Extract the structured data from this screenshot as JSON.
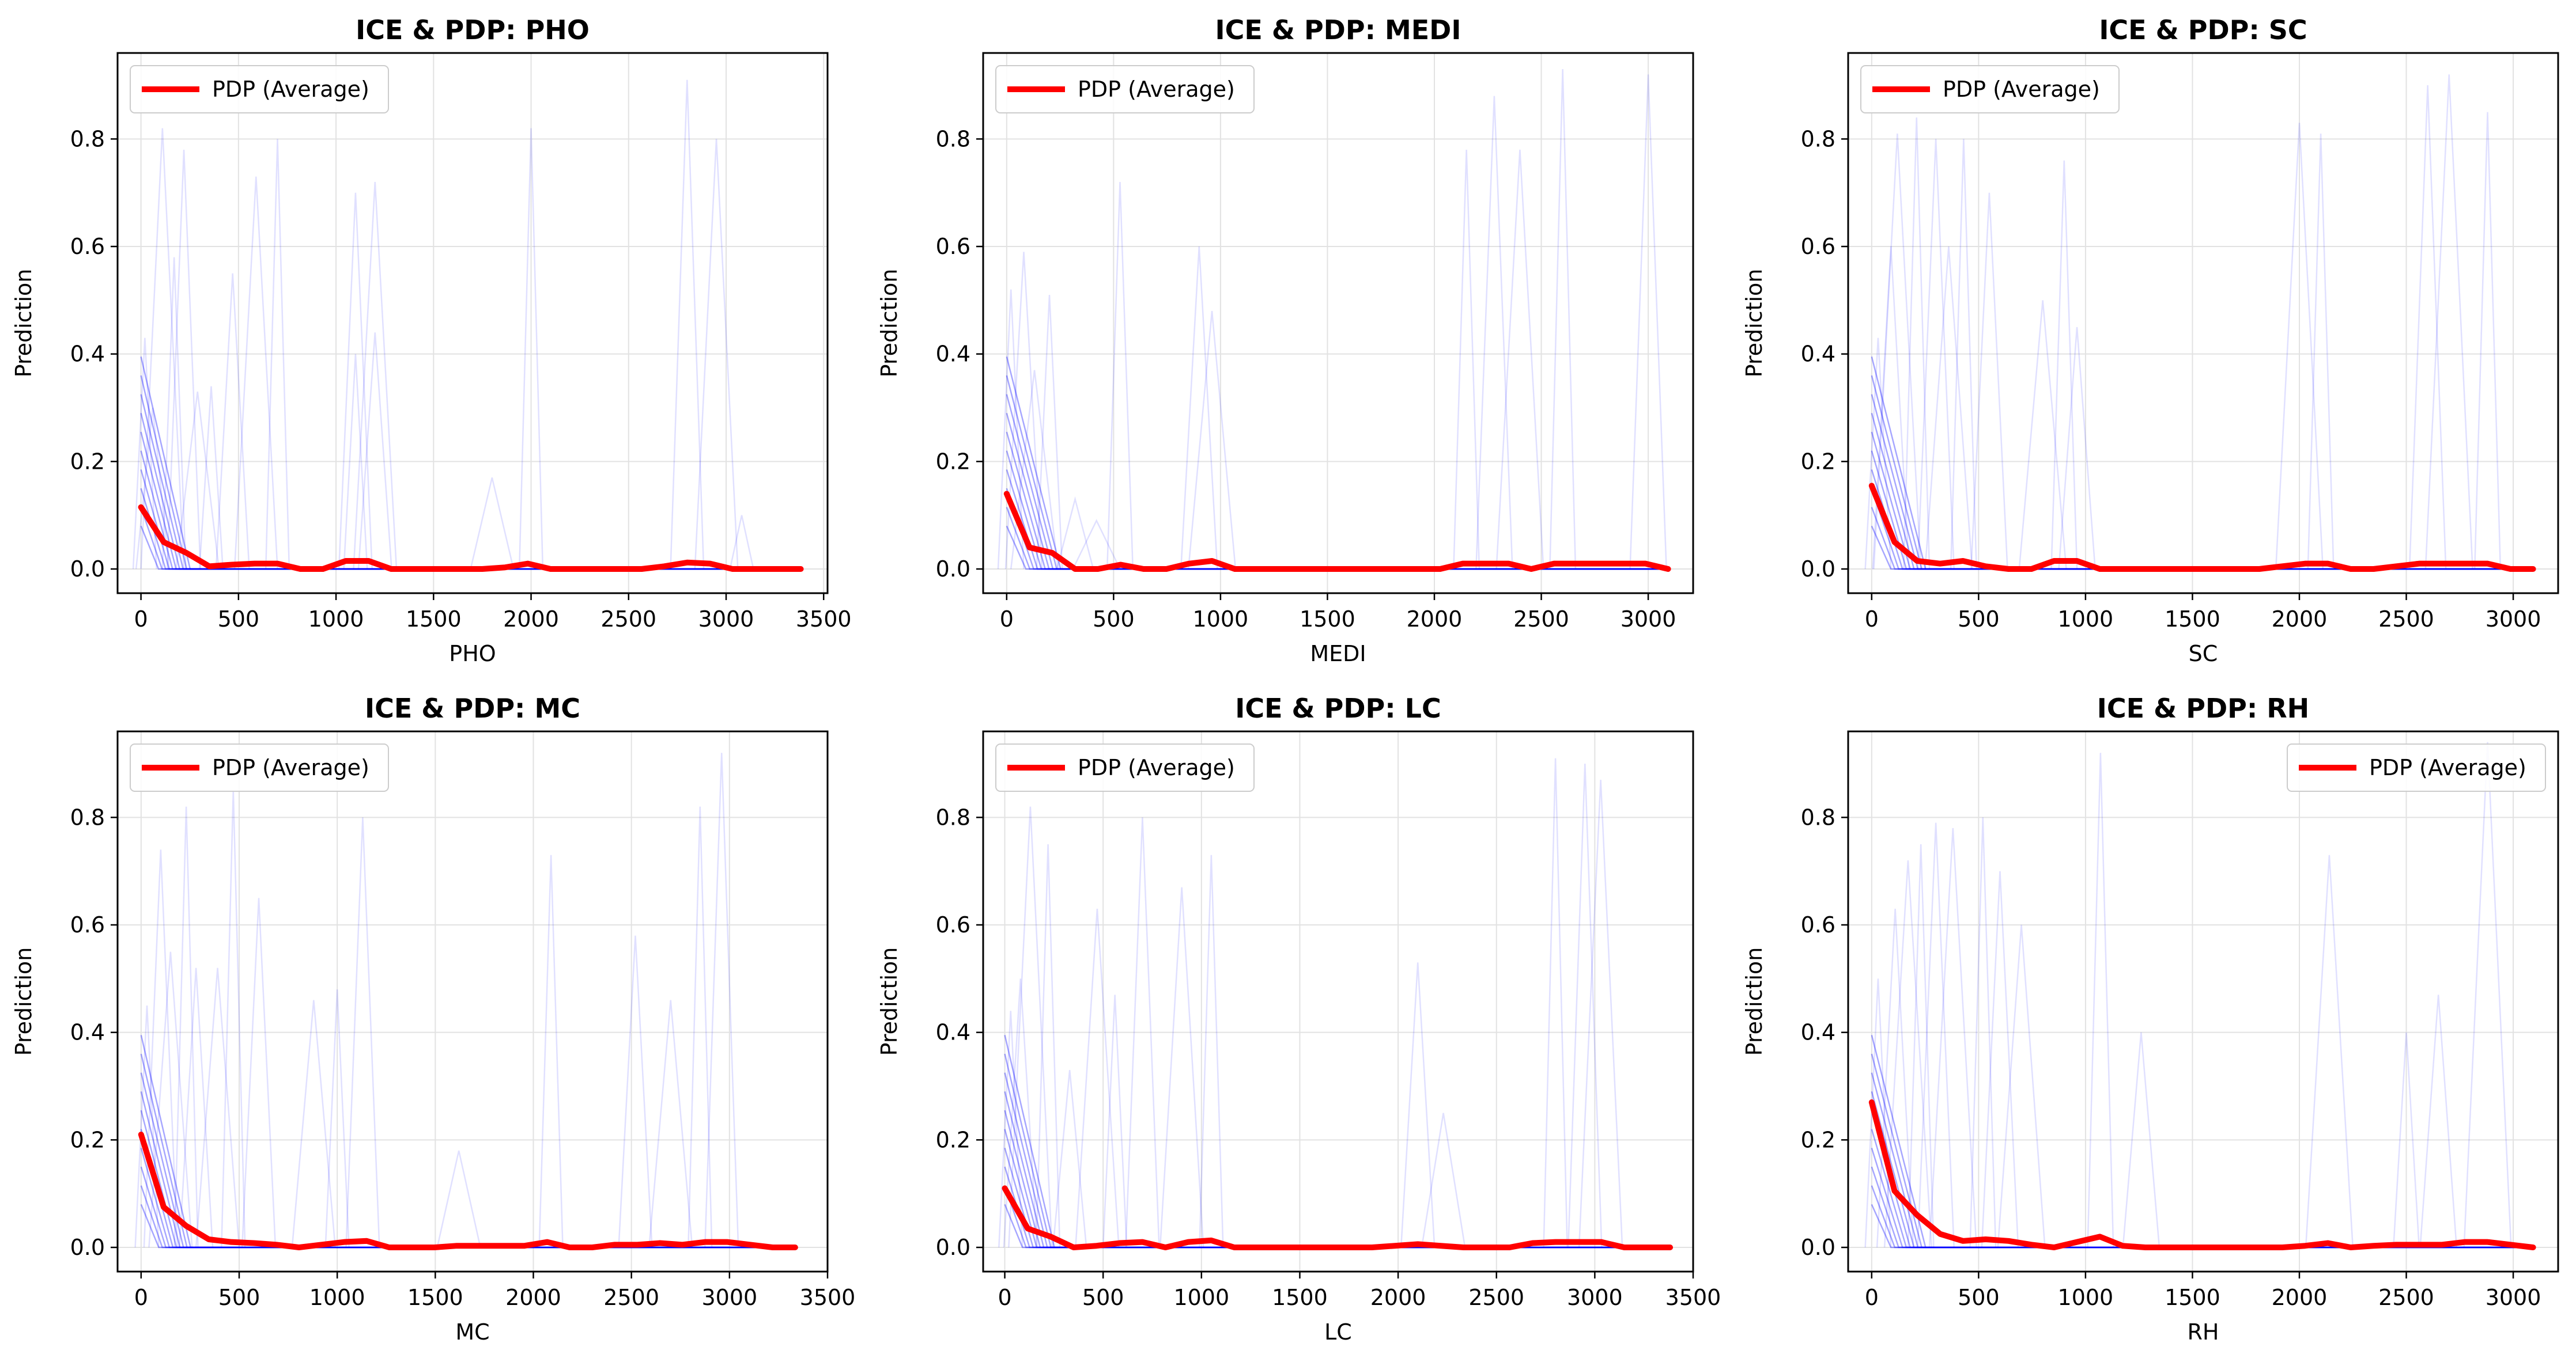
{
  "colors": {
    "pdp": "#ff0000",
    "ice_faint": "#0000ff",
    "grid": "#e2e2e2",
    "frame": "#000000"
  },
  "chart_data": [
    {
      "type": "line",
      "title": "ICE & PDP: PHO",
      "xlabel": "PHO",
      "ylabel": "Prediction",
      "xlim": [
        -120,
        3520
      ],
      "ylim": [
        -0.045,
        0.96
      ],
      "xticks": [
        0,
        500,
        1000,
        1500,
        2000,
        2500,
        3000,
        3500
      ],
      "yticks": [
        0.0,
        0.2,
        0.4,
        0.6,
        0.8
      ],
      "grid": true,
      "legend_position": "upper-left",
      "series": [
        {
          "name": "PDP (Average)",
          "x": [
            0,
            117,
            233,
            350,
            467,
            583,
            700,
            817,
            933,
            1050,
            1167,
            1283,
            1400,
            1517,
            1633,
            1750,
            1867,
            1983,
            2100,
            2217,
            2333,
            2450,
            2567,
            2683,
            2800,
            2917,
            3033,
            3150,
            3267,
            3383
          ],
          "values": [
            0.115,
            0.05,
            0.03,
            0.005,
            0.008,
            0.01,
            0.01,
            0.0,
            0.0,
            0.015,
            0.015,
            0.0,
            0.0,
            0.0,
            0.0,
            0.0,
            0.003,
            0.01,
            0.0,
            0.0,
            0.0,
            0.0,
            0.0,
            0.005,
            0.012,
            0.01,
            0.0,
            0.0,
            0.0,
            0.0
          ]
        }
      ],
      "ice_peaks": [
        [
          20,
          0.43
        ],
        [
          60,
          0.3
        ],
        [
          110,
          0.82
        ],
        [
          170,
          0.58
        ],
        [
          220,
          0.78
        ],
        [
          290,
          0.33
        ],
        [
          360,
          0.34
        ],
        [
          470,
          0.55
        ],
        [
          590,
          0.73
        ],
        [
          700,
          0.8
        ],
        [
          1100,
          0.7
        ],
        [
          1200,
          0.72
        ],
        [
          1100,
          0.4
        ],
        [
          1200,
          0.44
        ],
        [
          1800,
          0.17
        ],
        [
          2000,
          0.82
        ],
        [
          2800,
          0.91
        ],
        [
          2950,
          0.8
        ],
        [
          3080,
          0.1
        ]
      ]
    },
    {
      "type": "line",
      "title": "ICE & PDP: MEDI",
      "xlabel": "MEDI",
      "ylabel": "Prediction",
      "xlim": [
        -110,
        3210
      ],
      "ylim": [
        -0.045,
        0.96
      ],
      "xticks": [
        0,
        500,
        1000,
        1500,
        2000,
        2500,
        3000
      ],
      "yticks": [
        0.0,
        0.2,
        0.4,
        0.6,
        0.8
      ],
      "grid": true,
      "legend_position": "upper-left",
      "series": [
        {
          "name": "PDP (Average)",
          "x": [
            0,
            107,
            213,
            320,
            427,
            533,
            640,
            747,
            853,
            960,
            1067,
            1173,
            1280,
            1387,
            1493,
            1600,
            1707,
            1813,
            1920,
            2027,
            2133,
            2240,
            2347,
            2453,
            2560,
            2667,
            2773,
            2880,
            2987,
            3093
          ],
          "values": [
            0.14,
            0.04,
            0.03,
            0.0,
            0.0,
            0.008,
            0.0,
            0.0,
            0.01,
            0.015,
            0.0,
            0.0,
            0.0,
            0.0,
            0.0,
            0.0,
            0.0,
            0.0,
            0.0,
            0.0,
            0.01,
            0.01,
            0.01,
            0.0,
            0.01,
            0.01,
            0.01,
            0.01,
            0.01,
            0.0
          ]
        }
      ],
      "ice_peaks": [
        [
          20,
          0.52
        ],
        [
          80,
          0.59
        ],
        [
          130,
          0.37
        ],
        [
          200,
          0.51
        ],
        [
          320,
          0.13
        ],
        [
          420,
          0.09
        ],
        [
          530,
          0.72
        ],
        [
          900,
          0.6
        ],
        [
          960,
          0.48
        ],
        [
          2150,
          0.78
        ],
        [
          2280,
          0.88
        ],
        [
          2400,
          0.78
        ],
        [
          2600,
          0.93
        ],
        [
          3000,
          0.92
        ]
      ]
    },
    {
      "type": "line",
      "title": "ICE & PDP: SC",
      "xlabel": "SC",
      "ylabel": "Prediction",
      "xlim": [
        -110,
        3210
      ],
      "ylim": [
        -0.045,
        0.96
      ],
      "xticks": [
        0,
        500,
        1000,
        1500,
        2000,
        2500,
        3000
      ],
      "yticks": [
        0.0,
        0.2,
        0.4,
        0.6,
        0.8
      ],
      "grid": true,
      "legend_position": "upper-left",
      "series": [
        {
          "name": "PDP (Average)",
          "x": [
            0,
            107,
            213,
            320,
            427,
            533,
            640,
            747,
            853,
            960,
            1067,
            1173,
            1280,
            1387,
            1493,
            1600,
            1707,
            1813,
            1920,
            2027,
            2133,
            2240,
            2347,
            2453,
            2560,
            2667,
            2773,
            2880,
            2987,
            3093
          ],
          "values": [
            0.155,
            0.05,
            0.015,
            0.01,
            0.015,
            0.005,
            0.0,
            0.0,
            0.015,
            0.015,
            0.0,
            0.0,
            0.0,
            0.0,
            0.0,
            0.0,
            0.0,
            0.0,
            0.005,
            0.01,
            0.01,
            0.0,
            0.0,
            0.005,
            0.01,
            0.01,
            0.01,
            0.01,
            0.0,
            0.0
          ]
        }
      ],
      "ice_peaks": [
        [
          30,
          0.43
        ],
        [
          90,
          0.6
        ],
        [
          120,
          0.81
        ],
        [
          210,
          0.84
        ],
        [
          300,
          0.8
        ],
        [
          360,
          0.6
        ],
        [
          430,
          0.8
        ],
        [
          550,
          0.7
        ],
        [
          800,
          0.5
        ],
        [
          900,
          0.76
        ],
        [
          960,
          0.45
        ],
        [
          2000,
          0.83
        ],
        [
          2100,
          0.81
        ],
        [
          2600,
          0.9
        ],
        [
          2700,
          0.92
        ],
        [
          2880,
          0.85
        ]
      ]
    },
    {
      "type": "line",
      "title": "ICE & PDP: MC",
      "xlabel": "MC",
      "ylabel": "Prediction",
      "xlim": [
        -120,
        3500
      ],
      "ylim": [
        -0.045,
        0.96
      ],
      "xticks": [
        0,
        500,
        1000,
        1500,
        2000,
        2500,
        3000,
        3500
      ],
      "yticks": [
        0.0,
        0.2,
        0.4,
        0.6,
        0.8
      ],
      "grid": true,
      "legend_position": "upper-left",
      "series": [
        {
          "name": "PDP (Average)",
          "x": [
            0,
            115,
            230,
            345,
            460,
            575,
            690,
            805,
            920,
            1035,
            1150,
            1265,
            1380,
            1495,
            1610,
            1725,
            1840,
            1955,
            2070,
            2185,
            2300,
            2415,
            2530,
            2645,
            2760,
            2875,
            2990,
            3105,
            3220,
            3335
          ],
          "values": [
            0.21,
            0.075,
            0.04,
            0.015,
            0.01,
            0.008,
            0.005,
            0.0,
            0.005,
            0.01,
            0.012,
            0.0,
            0.0,
            0.0,
            0.003,
            0.003,
            0.003,
            0.003,
            0.01,
            0.0,
            0.0,
            0.005,
            0.005,
            0.008,
            0.005,
            0.01,
            0.01,
            0.005,
            0.0,
            0.0
          ]
        }
      ],
      "ice_peaks": [
        [
          30,
          0.45
        ],
        [
          100,
          0.74
        ],
        [
          150,
          0.55
        ],
        [
          230,
          0.82
        ],
        [
          280,
          0.52
        ],
        [
          390,
          0.52
        ],
        [
          470,
          0.85
        ],
        [
          600,
          0.65
        ],
        [
          880,
          0.46
        ],
        [
          1000,
          0.48
        ],
        [
          1130,
          0.8
        ],
        [
          1620,
          0.18
        ],
        [
          2090,
          0.73
        ],
        [
          2520,
          0.58
        ],
        [
          2700,
          0.46
        ],
        [
          2850,
          0.82
        ],
        [
          2960,
          0.92
        ]
      ]
    },
    {
      "type": "line",
      "title": "ICE & PDP: LC",
      "xlabel": "LC",
      "ylabel": "Prediction",
      "xlim": [
        -110,
        3500
      ],
      "ylim": [
        -0.045,
        0.96
      ],
      "xticks": [
        0,
        500,
        1000,
        1500,
        2000,
        2500,
        3000,
        3500
      ],
      "yticks": [
        0.0,
        0.2,
        0.4,
        0.6,
        0.8
      ],
      "grid": true,
      "legend_position": "upper-left",
      "series": [
        {
          "name": "PDP (Average)",
          "x": [
            0,
            117,
            233,
            350,
            467,
            583,
            700,
            817,
            933,
            1050,
            1167,
            1283,
            1400,
            1517,
            1633,
            1750,
            1867,
            1983,
            2100,
            2217,
            2333,
            2450,
            2567,
            2683,
            2800,
            2917,
            3033,
            3150,
            3267,
            3383
          ],
          "values": [
            0.11,
            0.035,
            0.02,
            0.0,
            0.003,
            0.008,
            0.01,
            0.0,
            0.01,
            0.013,
            0.0,
            0.0,
            0.0,
            0.0,
            0.0,
            0.0,
            0.0,
            0.003,
            0.006,
            0.003,
            0.0,
            0.0,
            0.0,
            0.008,
            0.01,
            0.01,
            0.01,
            0.0,
            0.0,
            0.0
          ]
        }
      ],
      "ice_peaks": [
        [
          30,
          0.44
        ],
        [
          80,
          0.5
        ],
        [
          130,
          0.82
        ],
        [
          220,
          0.75
        ],
        [
          330,
          0.33
        ],
        [
          470,
          0.63
        ],
        [
          560,
          0.47
        ],
        [
          700,
          0.8
        ],
        [
          900,
          0.67
        ],
        [
          1050,
          0.73
        ],
        [
          2100,
          0.53
        ],
        [
          2230,
          0.25
        ],
        [
          2800,
          0.91
        ],
        [
          2950,
          0.9
        ],
        [
          3030,
          0.87
        ]
      ]
    },
    {
      "type": "line",
      "title": "ICE & PDP: RH",
      "xlabel": "RH",
      "ylabel": "Prediction",
      "xlim": [
        -110,
        3210
      ],
      "ylim": [
        -0.045,
        0.96
      ],
      "xticks": [
        0,
        500,
        1000,
        1500,
        2000,
        2500,
        3000
      ],
      "yticks": [
        0.0,
        0.2,
        0.4,
        0.6,
        0.8
      ],
      "grid": true,
      "legend_position": "upper-right",
      "series": [
        {
          "name": "PDP (Average)",
          "x": [
            0,
            107,
            213,
            320,
            427,
            533,
            640,
            747,
            853,
            960,
            1067,
            1173,
            1280,
            1387,
            1493,
            1600,
            1707,
            1813,
            1920,
            2027,
            2133,
            2240,
            2347,
            2453,
            2560,
            2667,
            2773,
            2880,
            2987,
            3093
          ],
          "values": [
            0.27,
            0.105,
            0.06,
            0.025,
            0.012,
            0.015,
            0.012,
            0.005,
            0.0,
            0.01,
            0.02,
            0.003,
            0.0,
            0.0,
            0.0,
            0.0,
            0.0,
            0.0,
            0.0,
            0.003,
            0.008,
            0.0,
            0.003,
            0.005,
            0.005,
            0.005,
            0.01,
            0.01,
            0.005,
            0.0
          ]
        }
      ],
      "ice_peaks": [
        [
          30,
          0.5
        ],
        [
          110,
          0.63
        ],
        [
          170,
          0.72
        ],
        [
          230,
          0.75
        ],
        [
          300,
          0.79
        ],
        [
          380,
          0.78
        ],
        [
          520,
          0.8
        ],
        [
          600,
          0.7
        ],
        [
          700,
          0.6
        ],
        [
          1070,
          0.92
        ],
        [
          1260,
          0.4
        ],
        [
          2140,
          0.73
        ],
        [
          2500,
          0.4
        ],
        [
          2650,
          0.47
        ],
        [
          2880,
          0.94
        ]
      ]
    }
  ]
}
